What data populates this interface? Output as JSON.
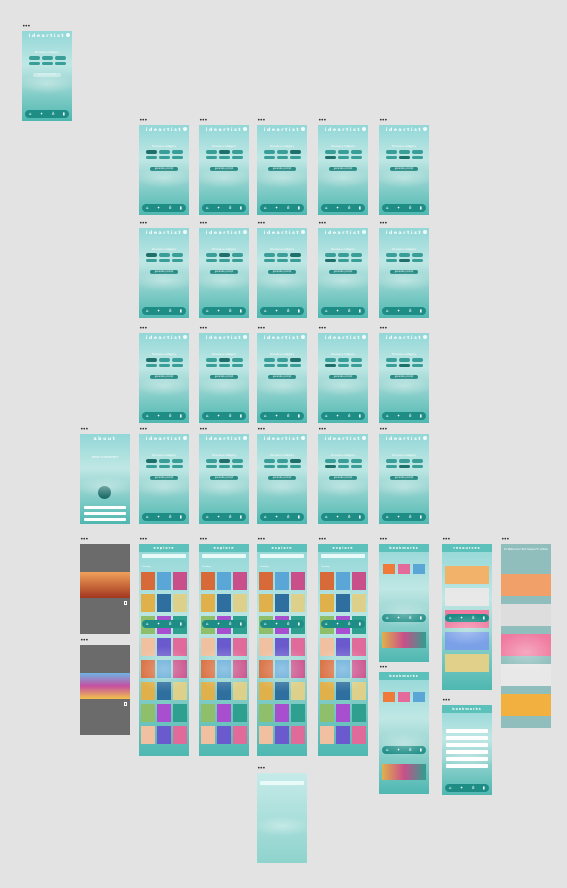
{
  "app": {
    "logo": "ideartist",
    "choose": "Choose a category",
    "chips": [
      "",
      "",
      "",
      "",
      "",
      ""
    ],
    "generate_label": "generate prompt",
    "nav_icons": [
      "home-icon",
      "gear-icon",
      "bulb-icon",
      "bookmark-icon"
    ]
  },
  "about": {
    "title": "about",
    "heading": "WHAT IS IDEARTIST?"
  },
  "explore": {
    "title": "explore",
    "section1": "Trending",
    "section2": "New"
  },
  "bookmarks": {
    "title": "bookmarks"
  },
  "resources": {
    "title": "resources"
  },
  "article": {
    "title": "10 Watercolor Techniques For Artists"
  },
  "colors": {
    "accent": "#1d8d86",
    "teal_light": "#92d7d7",
    "canvas": "#e3e3e3"
  }
}
